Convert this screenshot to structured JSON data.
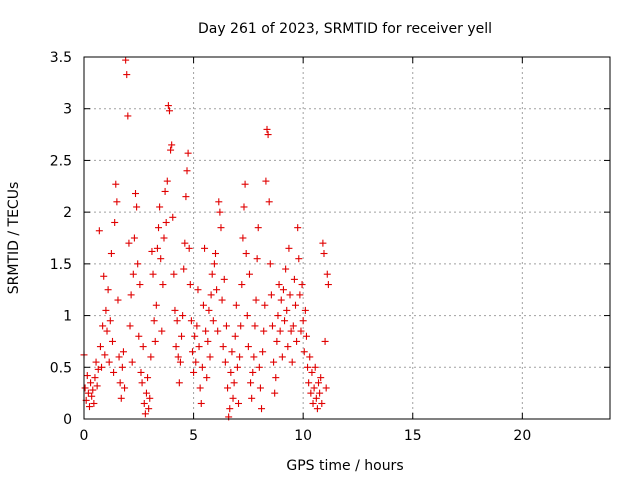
{
  "chart_data": {
    "type": "scatter",
    "title": "Day 261 of 2023, SRMTID for receiver yell",
    "xlabel": "GPS time / hours",
    "ylabel": "SRMTID / TECUs",
    "xlim": [
      0,
      24
    ],
    "ylim": [
      0,
      3.5
    ],
    "xticks": [
      0,
      5,
      10,
      15,
      20
    ],
    "xtick_labels": [
      "0",
      "5",
      "10",
      "15",
      "20"
    ],
    "yticks": [
      0,
      0.5,
      1,
      1.5,
      2,
      2.5,
      3,
      3.5
    ],
    "ytick_labels": [
      "0",
      "0.5",
      "1",
      "1.5",
      "2",
      "2.5",
      "3",
      "3.5"
    ],
    "grid": true,
    "marker": "+",
    "color": "#e00000",
    "series": [
      {
        "name": "SRMTID",
        "points": [
          [
            0.0,
            0.62
          ],
          [
            0.05,
            0.3
          ],
          [
            0.1,
            0.18
          ],
          [
            0.15,
            0.42
          ],
          [
            0.2,
            0.25
          ],
          [
            0.25,
            0.12
          ],
          [
            0.3,
            0.35
          ],
          [
            0.35,
            0.22
          ],
          [
            0.4,
            0.28
          ],
          [
            0.45,
            0.15
          ],
          [
            0.5,
            0.4
          ],
          [
            0.55,
            0.55
          ],
          [
            0.6,
            0.32
          ],
          [
            0.65,
            0.48
          ],
          [
            0.7,
            1.82
          ],
          [
            0.75,
            0.7
          ],
          [
            0.8,
            0.5
          ],
          [
            0.85,
            0.9
          ],
          [
            0.9,
            1.38
          ],
          [
            0.95,
            0.62
          ],
          [
            1.0,
            1.05
          ],
          [
            1.05,
            0.85
          ],
          [
            1.1,
            1.25
          ],
          [
            1.15,
            0.55
          ],
          [
            1.2,
            0.95
          ],
          [
            1.25,
            1.6
          ],
          [
            1.3,
            0.75
          ],
          [
            1.35,
            0.45
          ],
          [
            1.4,
            1.9
          ],
          [
            1.45,
            2.27
          ],
          [
            1.5,
            2.1
          ],
          [
            1.55,
            1.15
          ],
          [
            1.6,
            0.6
          ],
          [
            1.65,
            0.35
          ],
          [
            1.7,
            0.2
          ],
          [
            1.75,
            0.5
          ],
          [
            1.8,
            0.65
          ],
          [
            1.85,
            0.3
          ],
          [
            1.9,
            3.47
          ],
          [
            1.95,
            3.33
          ],
          [
            2.0,
            2.93
          ],
          [
            2.05,
            1.7
          ],
          [
            2.1,
            0.9
          ],
          [
            2.15,
            1.2
          ],
          [
            2.2,
            0.55
          ],
          [
            2.25,
            1.4
          ],
          [
            2.3,
            1.75
          ],
          [
            2.35,
            2.18
          ],
          [
            2.4,
            2.05
          ],
          [
            2.45,
            1.5
          ],
          [
            2.5,
            0.8
          ],
          [
            2.55,
            1.3
          ],
          [
            2.6,
            0.45
          ],
          [
            2.65,
            0.35
          ],
          [
            2.7,
            0.7
          ],
          [
            2.75,
            0.15
          ],
          [
            2.8,
            0.05
          ],
          [
            2.85,
            0.25
          ],
          [
            2.9,
            0.4
          ],
          [
            2.95,
            0.1
          ],
          [
            3.0,
            0.2
          ],
          [
            3.05,
            0.6
          ],
          [
            3.1,
            1.62
          ],
          [
            3.15,
            1.4
          ],
          [
            3.2,
            0.95
          ],
          [
            3.25,
            0.75
          ],
          [
            3.3,
            1.1
          ],
          [
            3.35,
            1.65
          ],
          [
            3.4,
            1.85
          ],
          [
            3.45,
            2.05
          ],
          [
            3.5,
            1.55
          ],
          [
            3.55,
            0.85
          ],
          [
            3.6,
            1.3
          ],
          [
            3.65,
            1.75
          ],
          [
            3.7,
            2.2
          ],
          [
            3.75,
            1.9
          ],
          [
            3.8,
            2.3
          ],
          [
            3.85,
            3.03
          ],
          [
            3.9,
            2.98
          ],
          [
            3.95,
            2.6
          ],
          [
            4.0,
            2.65
          ],
          [
            4.05,
            1.95
          ],
          [
            4.1,
            1.4
          ],
          [
            4.15,
            1.05
          ],
          [
            4.2,
            0.7
          ],
          [
            4.25,
            0.95
          ],
          [
            4.3,
            0.6
          ],
          [
            4.35,
            0.35
          ],
          [
            4.4,
            0.55
          ],
          [
            4.45,
            0.8
          ],
          [
            4.5,
            1.0
          ],
          [
            4.55,
            1.45
          ],
          [
            4.6,
            1.7
          ],
          [
            4.65,
            2.15
          ],
          [
            4.7,
            2.4
          ],
          [
            4.75,
            2.57
          ],
          [
            4.8,
            1.65
          ],
          [
            4.85,
            1.3
          ],
          [
            4.9,
            0.95
          ],
          [
            4.95,
            0.65
          ],
          [
            5.0,
            0.45
          ],
          [
            5.05,
            0.8
          ],
          [
            5.1,
            0.55
          ],
          [
            5.15,
            0.9
          ],
          [
            5.2,
            1.25
          ],
          [
            5.25,
            0.7
          ],
          [
            5.3,
            0.3
          ],
          [
            5.35,
            0.15
          ],
          [
            5.4,
            0.5
          ],
          [
            5.45,
            1.1
          ],
          [
            5.5,
            1.65
          ],
          [
            5.55,
            0.85
          ],
          [
            5.6,
            0.4
          ],
          [
            5.65,
            0.75
          ],
          [
            5.7,
            1.05
          ],
          [
            5.75,
            0.6
          ],
          [
            5.8,
            1.2
          ],
          [
            5.85,
            1.4
          ],
          [
            5.9,
            0.95
          ],
          [
            5.95,
            1.5
          ],
          [
            6.0,
            1.6
          ],
          [
            6.05,
            1.25
          ],
          [
            6.1,
            0.85
          ],
          [
            6.15,
            2.1
          ],
          [
            6.2,
            2.0
          ],
          [
            6.25,
            1.85
          ],
          [
            6.3,
            1.15
          ],
          [
            6.35,
            0.7
          ],
          [
            6.4,
            1.35
          ],
          [
            6.45,
            0.55
          ],
          [
            6.5,
            0.9
          ],
          [
            6.55,
            0.3
          ],
          [
            6.6,
            0.02
          ],
          [
            6.65,
            0.1
          ],
          [
            6.7,
            0.45
          ],
          [
            6.75,
            0.65
          ],
          [
            6.8,
            0.2
          ],
          [
            6.85,
            0.35
          ],
          [
            6.9,
            0.8
          ],
          [
            6.95,
            1.1
          ],
          [
            7.0,
            0.5
          ],
          [
            7.05,
            0.15
          ],
          [
            7.1,
            0.6
          ],
          [
            7.15,
            0.9
          ],
          [
            7.2,
            1.3
          ],
          [
            7.25,
            1.75
          ],
          [
            7.3,
            2.05
          ],
          [
            7.35,
            2.27
          ],
          [
            7.4,
            1.6
          ],
          [
            7.45,
            1.0
          ],
          [
            7.5,
            0.7
          ],
          [
            7.55,
            1.4
          ],
          [
            7.6,
            0.35
          ],
          [
            7.65,
            0.2
          ],
          [
            7.7,
            0.45
          ],
          [
            7.75,
            0.6
          ],
          [
            7.8,
            0.9
          ],
          [
            7.85,
            1.15
          ],
          [
            7.9,
            1.55
          ],
          [
            7.95,
            1.85
          ],
          [
            8.0,
            0.5
          ],
          [
            8.05,
            0.3
          ],
          [
            8.1,
            0.1
          ],
          [
            8.15,
            0.65
          ],
          [
            8.2,
            0.85
          ],
          [
            8.25,
            1.1
          ],
          [
            8.3,
            2.3
          ],
          [
            8.35,
            2.8
          ],
          [
            8.4,
            2.75
          ],
          [
            8.45,
            2.1
          ],
          [
            8.5,
            1.5
          ],
          [
            8.55,
            1.2
          ],
          [
            8.6,
            0.9
          ],
          [
            8.65,
            0.55
          ],
          [
            8.7,
            0.25
          ],
          [
            8.75,
            0.4
          ],
          [
            8.8,
            0.75
          ],
          [
            8.85,
            1.0
          ],
          [
            8.9,
            1.3
          ],
          [
            8.95,
            0.85
          ],
          [
            9.0,
            1.15
          ],
          [
            9.05,
            0.6
          ],
          [
            9.1,
            1.25
          ],
          [
            9.15,
            0.95
          ],
          [
            9.2,
            1.45
          ],
          [
            9.25,
            1.05
          ],
          [
            9.3,
            0.7
          ],
          [
            9.35,
            1.65
          ],
          [
            9.4,
            1.2
          ],
          [
            9.45,
            0.85
          ],
          [
            9.5,
            0.55
          ],
          [
            9.55,
            0.9
          ],
          [
            9.6,
            1.35
          ],
          [
            9.65,
            1.1
          ],
          [
            9.7,
            0.75
          ],
          [
            9.75,
            1.85
          ],
          [
            9.8,
            1.55
          ],
          [
            9.85,
            1.2
          ],
          [
            9.9,
            0.85
          ],
          [
            9.95,
            1.3
          ],
          [
            10.0,
            0.95
          ],
          [
            10.05,
            0.65
          ],
          [
            10.1,
            1.05
          ],
          [
            10.15,
            0.8
          ],
          [
            10.2,
            0.5
          ],
          [
            10.25,
            0.35
          ],
          [
            10.3,
            0.6
          ],
          [
            10.35,
            0.25
          ],
          [
            10.4,
            0.45
          ],
          [
            10.45,
            0.15
          ],
          [
            10.5,
            0.3
          ],
          [
            10.55,
            0.5
          ],
          [
            10.6,
            0.2
          ],
          [
            10.65,
            0.1
          ],
          [
            10.7,
            0.35
          ],
          [
            10.75,
            0.25
          ],
          [
            10.8,
            0.4
          ],
          [
            10.85,
            0.15
          ],
          [
            10.9,
            1.7
          ],
          [
            10.95,
            1.6
          ],
          [
            11.0,
            0.75
          ],
          [
            11.05,
            0.3
          ],
          [
            11.1,
            1.4
          ],
          [
            11.15,
            1.3
          ]
        ]
      }
    ]
  }
}
